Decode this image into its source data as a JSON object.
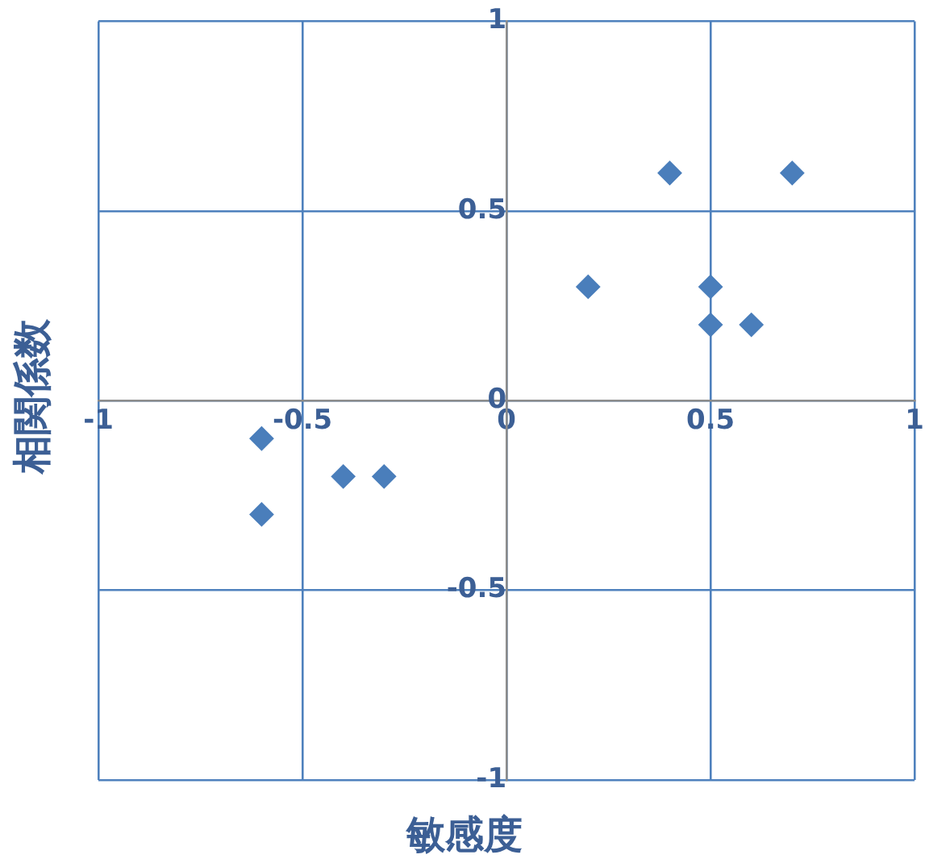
{
  "chart_data": {
    "type": "scatter",
    "xlabel": "敏感度",
    "ylabel": "相関係数",
    "x": [
      0.4,
      0.7,
      0.2,
      0.5,
      0.5,
      0.6,
      -0.6,
      -0.4,
      -0.3,
      -0.6
    ],
    "values": [
      0.6,
      0.6,
      0.3,
      0.3,
      0.2,
      0.2,
      -0.1,
      -0.2,
      -0.2,
      -0.3
    ],
    "color": "#4a7ebb",
    "marker": "diamond",
    "grid": true,
    "legend": false,
    "xlim": [
      -1,
      1
    ],
    "ylim": [
      -1,
      1
    ],
    "xticks": [
      -1,
      -0.5,
      0,
      0.5,
      1
    ],
    "yticks": [
      -1,
      -0.5,
      0,
      0.5,
      1
    ]
  }
}
